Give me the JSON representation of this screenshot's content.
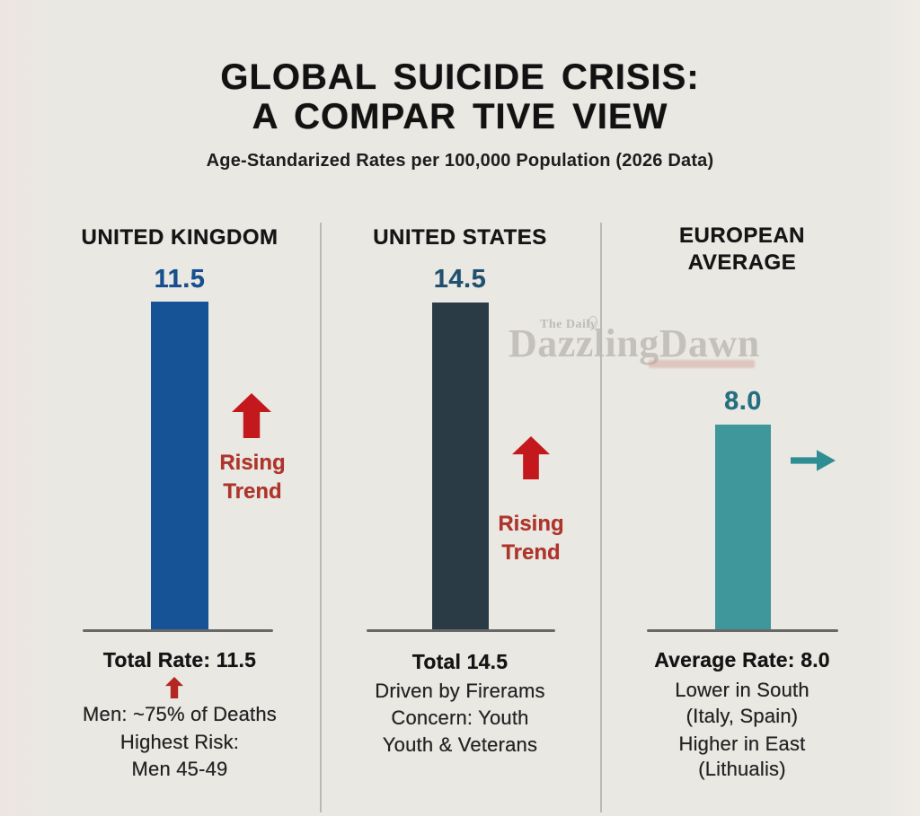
{
  "title": {
    "line1": "GLOBAL SUICIDE CRISIS:",
    "line2": "A COMPAR TIVE VIEW",
    "subtitle": "Age-Standarized Rates per 100,000 Population (2026 Data)"
  },
  "watermark": {
    "prefix": "The Daily",
    "brand": "DazzlingDawn"
  },
  "colors": {
    "background": "#eae8e3",
    "uk_bar": "#155296",
    "us_bar": "#2a3b46",
    "eu_bar": "#3f969b",
    "uk_value": "#174f8f",
    "us_value": "#21506e",
    "eu_value": "#256f80",
    "rising_arrow_red": "#c3191d",
    "rising_text_red": "#ad352b",
    "stable_arrow_teal": "#2f8e93"
  },
  "chart_data": {
    "type": "bar",
    "title": "GLOBAL SUICIDE CRISIS: A COMPAR TIVE VIEW",
    "subtitle": "Age-Standarized Rates per 100,000 Population (2026 Data)",
    "categories": [
      "UNITED KINGDOM",
      "UNITED STATES",
      "EUROPEAN AVERAGE"
    ],
    "values": [
      11.5,
      14.5,
      8.0
    ],
    "bar_colors": [
      "#155296",
      "#2a3b46",
      "#3f969b"
    ],
    "trends": [
      "rising",
      "rising",
      "stable"
    ],
    "annotations": [
      [
        "Total Rate: 11.5",
        "Men: ~75% of Deaths",
        "Highest Risk:",
        "Men 45-49"
      ],
      [
        "Total 14.5",
        "Driven by Firerams",
        "Concern: Youth",
        "Youth & Veterans"
      ],
      [
        "Average Rate: 8.0",
        "Lower in South",
        "(Italy, Spain)",
        "Higher in East",
        "(Lithualis)"
      ]
    ],
    "ylim": [
      0,
      15
    ],
    "grid": false,
    "legend": false
  },
  "columns": [
    {
      "header_lines": [
        "UNITED KINGDOM"
      ],
      "value": "11.5",
      "trend": {
        "direction": "up",
        "label_line1": "Rising",
        "label_line2": "Trend"
      },
      "stats": {
        "line1": "Total Rate: 11.5",
        "line2": "Men: ~75% of Deaths",
        "line3": "Highest Risk:",
        "line4": "Men 45-49"
      }
    },
    {
      "header_lines": [
        "UNITED STATES"
      ],
      "value": "14.5",
      "trend": {
        "direction": "up",
        "label_line1": "Rising",
        "label_line2": "Trend"
      },
      "stats": {
        "line1": "Total 14.5",
        "line2": "Driven by Firerams",
        "line3": "Concern: Youth",
        "line4": "Youth & Veterans"
      }
    },
    {
      "header_lines": [
        "EUROPEAN",
        "AVERAGE"
      ],
      "value": "8.0",
      "trend": {
        "direction": "right"
      },
      "stats": {
        "line1": "Average Rate: 8.0",
        "line2": "Lower in South",
        "line3": "(Italy, Spain)",
        "line4": "Higher in East",
        "line5": "(Lithualis)"
      }
    }
  ]
}
